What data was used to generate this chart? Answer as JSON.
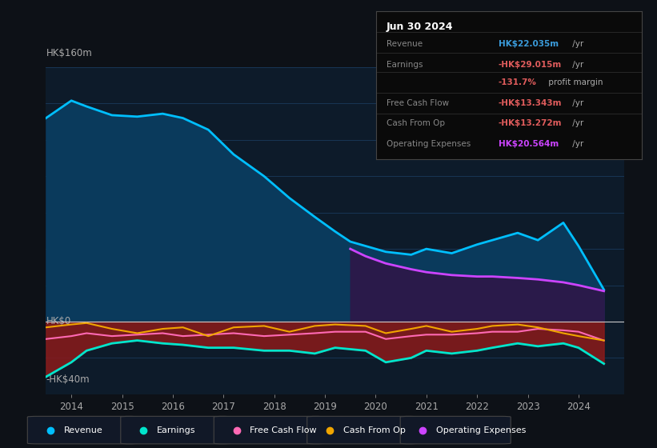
{
  "bg_color": "#0d1117",
  "plot_bg_color": "#0d1b2a",
  "title_box": {
    "date": "Jun 30 2024",
    "rows": [
      {
        "label": "Revenue",
        "value": "HK$22.035m",
        "value_color": "#3b9ddd",
        "has_yr": true
      },
      {
        "label": "Earnings",
        "value": "-HK$29.015m",
        "value_color": "#e05c5c",
        "has_yr": true
      },
      {
        "label": "",
        "value": "-131.7%",
        "value_color": "#e05c5c",
        "suffix": " profit margin",
        "has_yr": false
      },
      {
        "label": "Free Cash Flow",
        "value": "-HK$13.343m",
        "value_color": "#e05c5c",
        "has_yr": true
      },
      {
        "label": "Cash From Op",
        "value": "-HK$13.272m",
        "value_color": "#e05c5c",
        "has_yr": true
      },
      {
        "label": "Operating Expenses",
        "value": "HK$20.564m",
        "value_color": "#cc44ff",
        "has_yr": true
      }
    ]
  },
  "ylabel_top": "HK$160m",
  "ylabel_zero": "HK$0",
  "ylabel_bottom": "-HK$40m",
  "ylim": [
    -50,
    175
  ],
  "xlim": [
    2013.5,
    2024.9
  ],
  "x_ticks": [
    2014,
    2015,
    2016,
    2017,
    2018,
    2019,
    2020,
    2021,
    2022,
    2023,
    2024
  ],
  "series": {
    "revenue": {
      "x": [
        2013.5,
        2014.0,
        2014.3,
        2014.8,
        2015.3,
        2015.8,
        2016.2,
        2016.7,
        2017.2,
        2017.8,
        2018.3,
        2018.8,
        2019.2,
        2019.5,
        2019.8,
        2020.2,
        2020.7,
        2021.0,
        2021.5,
        2022.0,
        2022.3,
        2022.8,
        2023.2,
        2023.7,
        2024.0,
        2024.5
      ],
      "y": [
        140,
        152,
        148,
        142,
        141,
        143,
        140,
        132,
        115,
        100,
        85,
        72,
        62,
        55,
        52,
        48,
        46,
        50,
        47,
        53,
        56,
        61,
        56,
        68,
        52,
        22
      ],
      "color": "#00bfff",
      "fill_color": "#0a3a5c",
      "linewidth": 2.0
    },
    "operating_expenses": {
      "x": [
        2019.5,
        2019.8,
        2020.2,
        2020.7,
        2021.0,
        2021.5,
        2022.0,
        2022.3,
        2022.8,
        2023.2,
        2023.7,
        2024.0,
        2024.5
      ],
      "y": [
        50,
        45,
        40,
        36,
        34,
        32,
        31,
        31,
        30,
        29,
        27,
        25,
        21
      ],
      "color": "#cc44ff",
      "fill_color": "#2a1a4a",
      "linewidth": 2.0
    },
    "earnings": {
      "x": [
        2013.5,
        2014.0,
        2014.3,
        2014.8,
        2015.3,
        2015.8,
        2016.2,
        2016.7,
        2017.2,
        2017.8,
        2018.3,
        2018.8,
        2019.2,
        2019.8,
        2020.2,
        2020.7,
        2021.0,
        2021.5,
        2022.0,
        2022.3,
        2022.8,
        2023.2,
        2023.7,
        2024.0,
        2024.5
      ],
      "y": [
        -38,
        -28,
        -20,
        -15,
        -13,
        -15,
        -16,
        -18,
        -18,
        -20,
        -20,
        -22,
        -18,
        -20,
        -28,
        -25,
        -20,
        -22,
        -20,
        -18,
        -15,
        -17,
        -15,
        -18,
        -29
      ],
      "color": "#00e5cc",
      "fill_color": "#8b1a1a",
      "linewidth": 2.0
    },
    "free_cash_flow": {
      "x": [
        2013.5,
        2014.0,
        2014.3,
        2014.8,
        2015.3,
        2015.8,
        2016.2,
        2016.7,
        2017.2,
        2017.8,
        2018.3,
        2018.8,
        2019.2,
        2019.8,
        2020.2,
        2020.7,
        2021.0,
        2021.5,
        2022.0,
        2022.3,
        2022.8,
        2023.2,
        2023.7,
        2024.0,
        2024.5
      ],
      "y": [
        -12,
        -10,
        -8,
        -10,
        -9,
        -8,
        -10,
        -9,
        -8,
        -10,
        -9,
        -8,
        -7,
        -7,
        -12,
        -10,
        -9,
        -9,
        -8,
        -7,
        -7,
        -5,
        -6,
        -7,
        -13
      ],
      "color": "#ff69b4",
      "linewidth": 1.5
    },
    "cash_from_op": {
      "x": [
        2013.5,
        2014.0,
        2014.3,
        2014.8,
        2015.3,
        2015.8,
        2016.2,
        2016.7,
        2017.2,
        2017.8,
        2018.3,
        2018.8,
        2019.2,
        2019.8,
        2020.2,
        2020.7,
        2021.0,
        2021.5,
        2022.0,
        2022.3,
        2022.8,
        2023.2,
        2023.7,
        2024.0,
        2024.5
      ],
      "y": [
        -4,
        -2,
        -1,
        -5,
        -8,
        -5,
        -4,
        -10,
        -4,
        -3,
        -7,
        -3,
        -2,
        -3,
        -8,
        -5,
        -3,
        -7,
        -5,
        -3,
        -2,
        -4,
        -8,
        -10,
        -13
      ],
      "color": "#f0a500",
      "linewidth": 1.5
    }
  },
  "legend": [
    {
      "label": "Revenue",
      "color": "#00bfff"
    },
    {
      "label": "Earnings",
      "color": "#00e5cc"
    },
    {
      "label": "Free Cash Flow",
      "color": "#ff69b4"
    },
    {
      "label": "Cash From Op",
      "color": "#f0a500"
    },
    {
      "label": "Operating Expenses",
      "color": "#cc44ff"
    }
  ]
}
